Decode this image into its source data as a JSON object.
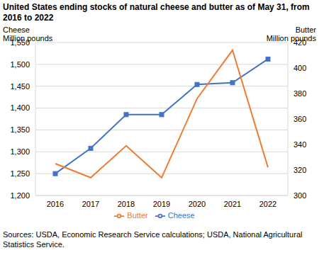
{
  "chart_data": {
    "type": "line",
    "title": "United States ending stocks of natural cheese and butter as of May 31, from 2016 to 2022",
    "y_label": "Cheese\nMillion pounds",
    "y2_label": "Butter\nMillion pounds",
    "source": "Sources: USDA, Economic Research Service calculations; USDA, National Agricultural Statistics Service.",
    "categories": [
      "2016",
      "2017",
      "2018",
      "2019",
      "2020",
      "2021",
      "2022"
    ],
    "series": [
      {
        "name": "Cheese",
        "color": "#4472c4",
        "marker": "square",
        "values": [
          1250,
          1308,
          1385,
          1385,
          1454,
          1458,
          1512
        ]
      },
      {
        "name": "Butter",
        "color": "#ed7d31",
        "marker": "none",
        "axis": "y2",
        "values": [
          325,
          314,
          339,
          314,
          376,
          414,
          322
        ]
      }
    ],
    "ylim": [
      1200,
      1550
    ],
    "yticks": [
      {
        "value": 1200,
        "label": "1,200"
      },
      {
        "value": 1250,
        "label": "1,250"
      },
      {
        "value": 1300,
        "label": "1,300"
      },
      {
        "value": 1350,
        "label": "1,350"
      },
      {
        "value": 1400,
        "label": "1,400"
      },
      {
        "value": 1450,
        "label": "1,450"
      },
      {
        "value": 1500,
        "label": "1,500"
      },
      {
        "value": 1550,
        "label": "1,550"
      }
    ],
    "y2lim": [
      300,
      420
    ],
    "y2ticks": [
      300,
      320,
      340,
      360,
      380,
      400,
      420
    ],
    "grid": true,
    "legend": "bottom"
  }
}
